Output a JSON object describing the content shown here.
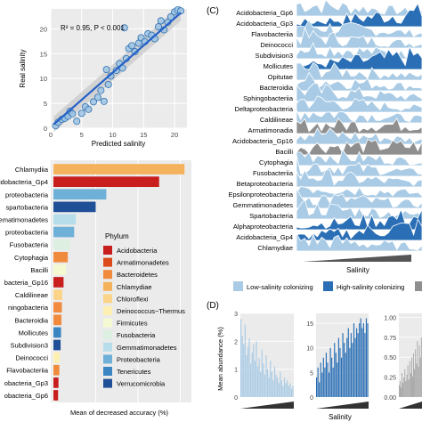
{
  "panel_labels": {
    "c": "(C)",
    "d": "(D)"
  },
  "legend_bottom": {
    "items": [
      {
        "label": "Low-salinity colonizing",
        "color": "#a9cbe5"
      },
      {
        "label": "High-salinity colonizing",
        "color": "#2a6fb5"
      },
      {
        "label": "",
        "color": "#8f8f8f"
      }
    ]
  },
  "chart_data": [
    {
      "id": "A",
      "type": "scatter",
      "annotation": "R² = 0.95, P < 0.001",
      "xlabel": "Predicted salinity",
      "ylabel": "Real salinity",
      "xlim": [
        0,
        22
      ],
      "ylim": [
        0,
        24
      ],
      "xticks": [
        0,
        5,
        10,
        15,
        20
      ],
      "yticks": [
        0,
        5,
        10,
        15,
        20
      ],
      "points": [
        [
          0.8,
          0.5
        ],
        [
          1.2,
          1.2
        ],
        [
          1.8,
          1.8
        ],
        [
          2.3,
          2.0
        ],
        [
          2.8,
          2.4
        ],
        [
          3.1,
          3.4
        ],
        [
          3.5,
          2.9
        ],
        [
          4.2,
          1.4
        ],
        [
          5.0,
          3.0
        ],
        [
          5.6,
          4.3
        ],
        [
          6.1,
          3.8
        ],
        [
          6.9,
          5.3
        ],
        [
          7.6,
          6.2
        ],
        [
          8.1,
          7.6
        ],
        [
          8.6,
          5.4
        ],
        [
          9.3,
          8.8
        ],
        [
          9.7,
          10.5
        ],
        [
          10.6,
          11.6
        ],
        [
          11.1,
          13.0
        ],
        [
          11.6,
          12.1
        ],
        [
          12.2,
          14.0
        ],
        [
          12.6,
          16.0
        ],
        [
          13.1,
          16.6
        ],
        [
          13.6,
          15.4
        ],
        [
          14.2,
          17.1
        ],
        [
          14.6,
          18.2
        ],
        [
          15.2,
          17.4
        ],
        [
          15.7,
          19.0
        ],
        [
          16.3,
          18.7
        ],
        [
          16.8,
          18.0
        ],
        [
          17.4,
          20.4
        ],
        [
          17.8,
          21.6
        ],
        [
          18.3,
          19.8
        ],
        [
          18.9,
          21.3
        ],
        [
          19.4,
          22.4
        ],
        [
          20.0,
          23.4
        ],
        [
          20.5,
          23.8
        ],
        [
          21.0,
          23.6
        ],
        [
          11.9,
          20.2
        ],
        [
          9.0,
          11.8
        ]
      ],
      "fit_line": [
        [
          0.5,
          0.8
        ],
        [
          21,
          23.2
        ]
      ]
    },
    {
      "id": "B",
      "type": "bar",
      "orientation": "horizontal",
      "xlabel": "Mean of decreased accuracy (%)",
      "categories": [
        "Chlamydiia",
        "Acidobacteria_Gp4",
        "Alphaproteobacteria",
        "Spartobacteria",
        "Gemmatimonadetes",
        "Betaproteobacteria",
        "Fusobacteria",
        "Cytophagia",
        "Bacilli",
        "Acidobacteria_Gp16",
        "Caldilineae",
        "Sphingobacteriia",
        "Bacteroidia",
        "Mollicutes",
        "Subdivision3",
        "Deinococci",
        "Flavobacteriia",
        "Acidobacteria_Gp3",
        "Acidobacteria_Gp6"
      ],
      "category_labels": [
        "Chlamydiia",
        "acidobacteria_Gp4",
        "proteobacteria",
        "spartobacteria",
        "ematimonadetes",
        "proteobacteria",
        "Fusobacteria",
        "Cytophagia",
        "Bacilli",
        "bacteria_Gp16",
        "Caldilineae",
        "ningobacteria",
        "Bacteroidia",
        "Mollicutes",
        "Subdivision3",
        "Deinococci",
        "Flavobacteriia",
        "obacteria_Gp3",
        "obacteria_Gp6"
      ],
      "values": [
        31.0,
        25.0,
        12.5,
        10.0,
        5.3,
        4.9,
        4.0,
        3.4,
        3.0,
        2.4,
        2.1,
        2.0,
        1.9,
        1.8,
        1.7,
        1.5,
        1.4,
        1.2,
        1.1
      ],
      "phylum": [
        "Chlamydiae",
        "Acidobacteria",
        "Proteobacteria",
        "Verrucomicrobia",
        "Gemmatimonadetes",
        "Proteobacteria",
        "Fusobacteria",
        "Bacteroidetes",
        "Firmicutes",
        "Acidobacteria",
        "Chloroflexi",
        "Bacteroidetes",
        "Bacteroidetes",
        "Tenericutes",
        "Verrucomicrobia",
        "Deinococcus−Thermus",
        "Bacteroidetes",
        "Acidobacteria",
        "Acidobacteria"
      ],
      "legend_title": "Phylum",
      "legend": [
        {
          "name": "Acidobacteria",
          "color": "#c81e1e"
        },
        {
          "name": "Armatimonadetes",
          "color": "#dc4a1c"
        },
        {
          "name": "Bacteroidetes",
          "color": "#f08a3c"
        },
        {
          "name": "Chlamydiae",
          "color": "#f5b25c"
        },
        {
          "name": "Chloroflexi",
          "color": "#fbd48a"
        },
        {
          "name": "Deinococcus−Thermus",
          "color": "#fdf0b2"
        },
        {
          "name": "Firmicutes",
          "color": "#f4f9d2"
        },
        {
          "name": "Fusobacteria",
          "color": "#dcefe0"
        },
        {
          "name": "Gemmatimonadetes",
          "color": "#b7dcea"
        },
        {
          "name": "Proteobacteria",
          "color": "#6fb0d8"
        },
        {
          "name": "Tenericutes",
          "color": "#3b86c2"
        },
        {
          "name": "Verrucomicrobia",
          "color": "#1f4f96"
        }
      ]
    },
    {
      "id": "C",
      "type": "area",
      "subtype": "ridgeline",
      "xlabel": "Salinity",
      "rows": [
        {
          "name": "Acidobacteria_Gp6",
          "group": "low"
        },
        {
          "name": "Acidobacteria_Gp3",
          "group": "high"
        },
        {
          "name": "Flavobacteriia",
          "group": "low"
        },
        {
          "name": "Deinococci",
          "group": "low"
        },
        {
          "name": "Subdivision3",
          "group": "low"
        },
        {
          "name": "Mollicutes",
          "group": "high"
        },
        {
          "name": "Opitutae",
          "group": "low"
        },
        {
          "name": "Bacteroidia",
          "group": "low"
        },
        {
          "name": "Sphingobacteriia",
          "group": "low"
        },
        {
          "name": "Deltaproteobacteria",
          "group": "low"
        },
        {
          "name": "Caldilineae",
          "group": "low"
        },
        {
          "name": "Armatimonadia",
          "group": "mixed"
        },
        {
          "name": "Acidobacteria_Gp16",
          "group": "low"
        },
        {
          "name": "Bacilli",
          "group": "mixed"
        },
        {
          "name": "Cytophagia",
          "group": "low"
        },
        {
          "name": "Fusobacteriia",
          "group": "low"
        },
        {
          "name": "Betaproteobacteria",
          "group": "low"
        },
        {
          "name": "Epsilonproteobacteria",
          "group": "low"
        },
        {
          "name": "Gemmatimonadetes",
          "group": "low"
        },
        {
          "name": "Spartobacteria",
          "group": "low"
        },
        {
          "name": "Alphaproteobacteria",
          "group": "high"
        },
        {
          "name": "Acidobacteria_Gp4",
          "group": "high"
        },
        {
          "name": "Chlamydiae",
          "group": "low"
        }
      ]
    },
    {
      "id": "D",
      "type": "bar",
      "ylabel": "Mean abundance (%)",
      "xlabel": "Salinity",
      "panels": [
        {
          "ylim": [
            0,
            3
          ],
          "yticks": [
            "0",
            "1",
            "2",
            "3"
          ],
          "color": "#a9cbe5",
          "values": [
            2.8,
            2.2,
            1.9,
            2.6,
            1.5,
            1.8,
            2.1,
            1.2,
            1.6,
            1.9,
            1.3,
            2.0,
            1.1,
            1.4,
            0.9,
            1.7,
            1.2,
            0.8,
            1.5,
            1.0,
            0.7,
            1.3,
            0.9,
            0.6,
            1.1,
            0.8,
            0.7,
            0.5,
            0.9,
            0.6,
            0.4,
            0.7,
            0.5,
            0.6,
            0.4,
            0.5,
            0.3,
            0.4
          ]
        },
        {
          "ylim": [
            0,
            17
          ],
          "yticks": [
            "0",
            "5",
            "10",
            "15"
          ],
          "color": "#2a6fb5",
          "values": [
            4,
            6,
            3,
            7,
            5,
            8,
            6,
            9,
            7,
            5,
            10,
            8,
            6,
            11,
            9,
            7,
            12,
            10,
            8,
            13,
            11,
            9,
            12,
            14,
            10,
            13,
            11,
            15,
            12,
            14,
            13,
            15,
            16,
            14,
            15,
            13,
            16,
            15
          ]
        },
        {
          "ylim": [
            0,
            1.05
          ],
          "yticks": [
            "0.00",
            "0.25",
            "0.50",
            "0.75",
            "1.00"
          ],
          "color": "#8f8f8f",
          "values": [
            0.15,
            0.2,
            0.12,
            0.3,
            0.18,
            0.25,
            0.35,
            0.2,
            0.28,
            0.4,
            0.22,
            0.45,
            0.3,
            0.5,
            0.26,
            0.55,
            0.35,
            0.6,
            0.42,
            0.7,
            0.38,
            0.65,
            0.5,
            0.75
          ]
        }
      ]
    }
  ]
}
